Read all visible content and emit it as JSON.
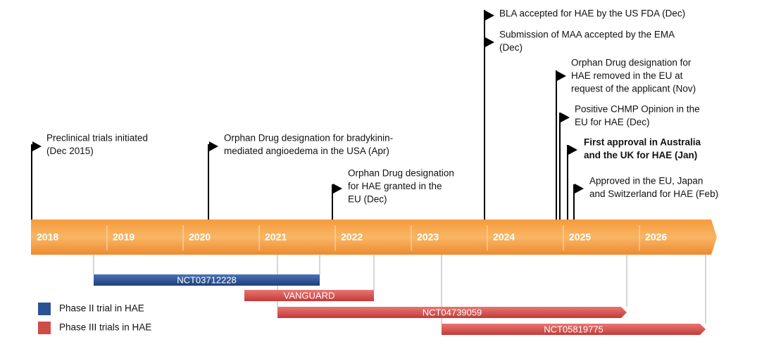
{
  "years": [
    "2018",
    "2019",
    "2020",
    "2021",
    "2022",
    "2023",
    "2024",
    "2025",
    "2026"
  ],
  "events": [
    {
      "lines": [
        "Preclinical trials initiated",
        "(Dec 2015)"
      ]
    },
    {
      "lines": [
        "Orphan Drug designation for bradykinin-",
        "mediated angioedema in the USA (Apr)"
      ]
    },
    {
      "lines": [
        "Orphan Drug designation",
        "for HAE granted in the",
        "EU  (Dec)"
      ]
    },
    {
      "lines": [
        "BLA accepted for HAE by the US FDA (Dec)"
      ]
    },
    {
      "lines": [
        "Submission of MAA accepted by the EMA",
        "(Dec)"
      ]
    },
    {
      "lines": [
        "Orphan Drug designation for",
        "HAE removed in the EU at",
        "request of the applicant (Nov)"
      ]
    },
    {
      "lines": [
        "Positive CHMP Opinion in the",
        "EU for HAE (Dec)"
      ]
    },
    {
      "lines": [
        "First approval in Australia",
        "and the UK for HAE (Jan)"
      ],
      "bold": true
    },
    {
      "lines": [
        "Approved in the EU, Japan",
        "and Switzerland for HAE (Feb)"
      ]
    }
  ],
  "trials": [
    {
      "label": "NCT03712228",
      "phase": "II"
    },
    {
      "label": "VANGUARD",
      "phase": "III"
    },
    {
      "label": "NCT04739059",
      "phase": "III"
    },
    {
      "label": "NCT05819775",
      "phase": "III"
    }
  ],
  "legend": [
    {
      "label": "Phase II trial in HAE",
      "color": "#2b5394"
    },
    {
      "label": "Phase III trials in HAE",
      "color": "#cf4b47"
    }
  ]
}
